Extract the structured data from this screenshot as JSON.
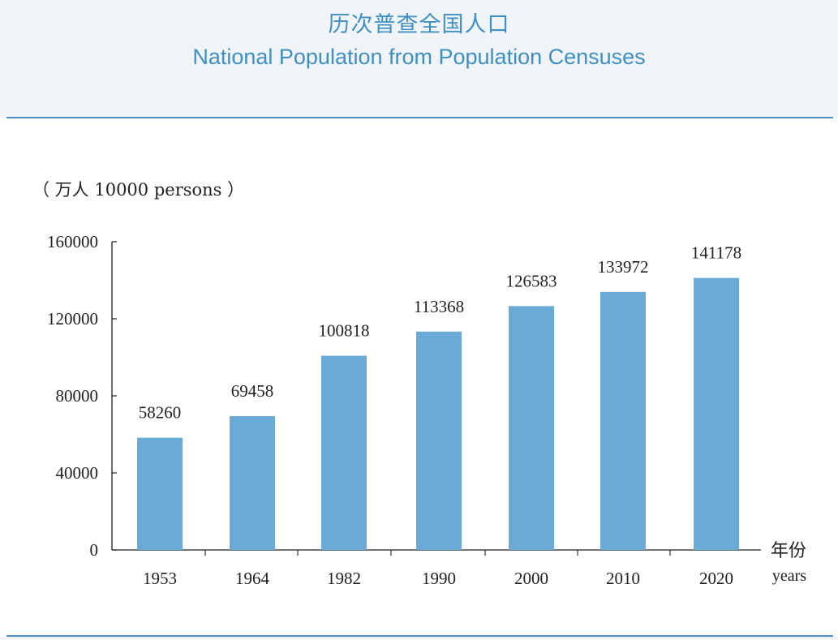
{
  "header": {
    "title_zh": "历次普查全国人口",
    "title_en": "National Population from Population Censuses"
  },
  "chart_data": {
    "type": "bar",
    "unit_label": "（ 万人 10000 persons ）",
    "categories": [
      "1953",
      "1964",
      "1982",
      "1990",
      "2000",
      "2010",
      "2020"
    ],
    "values": [
      58260,
      69458,
      100818,
      113368,
      126583,
      133972,
      141178
    ],
    "data_labels": [
      "58260",
      "69458",
      "100818",
      "113368",
      "126583",
      "133972",
      "141178"
    ],
    "ylim": [
      0,
      160000
    ],
    "yticks": [
      0,
      40000,
      80000,
      120000,
      160000
    ],
    "ytick_labels": [
      "0",
      "40000",
      "80000",
      "120000",
      "160000"
    ],
    "xlabel_zh": "年份",
    "xlabel_en": "years",
    "bar_color": "#6aaad6",
    "grid": false
  }
}
